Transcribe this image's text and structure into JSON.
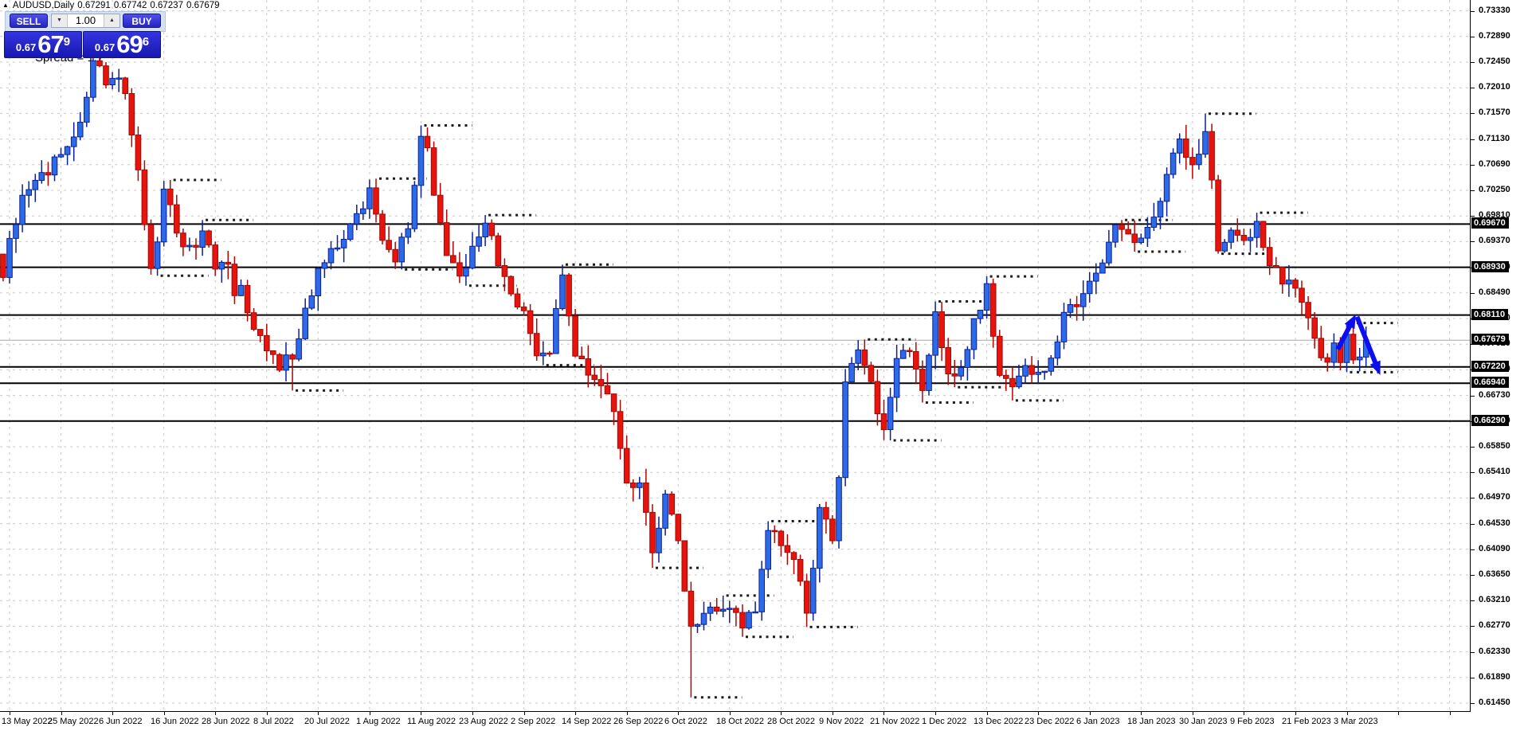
{
  "header": {
    "symbol": "AUDUSD,Daily",
    "open": "0.67291",
    "high": "0.67742",
    "low": "0.67237",
    "close": "0.67679"
  },
  "trade_panel": {
    "sell_label": "SELL",
    "buy_label": "BUY",
    "volume": "1.00",
    "spread_text": "Spread = 1.7",
    "sell_price": {
      "prefix": "0.67",
      "big": "67",
      "sup": "9"
    },
    "buy_price": {
      "prefix": "0.67",
      "big": "69",
      "sup": "6"
    }
  },
  "colors": {
    "bull_fill": "#2e6ae8",
    "bull_border": "#0a1f96",
    "bear_fill": "#e8130d",
    "bear_border": "#9e0a06",
    "level_line": "#000000",
    "grid": "#c9c9c9",
    "bid_line": "#a8a8a8",
    "arrow": "#0d0df2",
    "panel_bg": "#d4e2f2",
    "button_bg": "#3030d6",
    "tile_bg": "#2020c6"
  },
  "chart_data": {
    "type": "candlestick",
    "symbol": "AUDUSD",
    "timeframe": "Daily",
    "title": "AUDUSD,Daily  0.67291 0.67742 0.67237 0.67679",
    "grid": "dashed",
    "y_axis": {
      "min": 0.6145,
      "max": 0.7333,
      "tick_step": 0.0044,
      "tick_labels": [
        "0.73330",
        "0.72890",
        "0.72450",
        "0.72010",
        "0.71570",
        "0.71130",
        "0.70690",
        "0.70250",
        "0.69810",
        "0.69370",
        "0.68930",
        "0.68490",
        "0.68050",
        "0.67610",
        "0.67170",
        "0.66730",
        "0.66290",
        "0.65850",
        "0.65410",
        "0.64970",
        "0.64530",
        "0.64090",
        "0.63650",
        "0.63210",
        "0.62770",
        "0.62330",
        "0.61890",
        "0.61450"
      ]
    },
    "x_axis": {
      "bars_per_tick": 8,
      "tick_labels": [
        "13 May 2022",
        "25 May 2022",
        "6 Jun 2022",
        "16 Jun 2022",
        "28 Jun 2022",
        "8 Jul 2022",
        "20 Jul 2022",
        "1 Aug 2022",
        "11 Aug 2022",
        "23 Aug 2022",
        "2 Sep 2022",
        "14 Sep 2022",
        "26 Sep 2022",
        "6 Oct 2022",
        "18 Oct 2022",
        "28 Oct 2022",
        "9 Nov 2022",
        "21 Nov 2022",
        "1 Dec 2022",
        "13 Dec 2022",
        "23 Dec 2022",
        "6 Jan 2023",
        "18 Jan 2023",
        "30 Jan 2023",
        "9 Feb 2023",
        "21 Feb 2023",
        "3 Mar 2023"
      ]
    },
    "levels": [
      {
        "price": 0.6967,
        "label": "0.69670"
      },
      {
        "price": 0.6893,
        "label": "0.68930"
      },
      {
        "price": 0.6811,
        "label": "0.68110"
      },
      {
        "price": 0.6722,
        "label": "0.67220"
      },
      {
        "price": 0.6694,
        "label": "0.66940"
      },
      {
        "price": 0.6629,
        "label": "0.66290"
      }
    ],
    "bid": {
      "price": 0.67679,
      "label": "0.67679"
    },
    "close_path_anchors": [
      [
        0,
        0.688
      ],
      [
        1,
        0.6938
      ],
      [
        3,
        0.701
      ],
      [
        5,
        0.7035
      ],
      [
        7,
        0.706
      ],
      [
        9,
        0.7085
      ],
      [
        11,
        0.712
      ],
      [
        13,
        0.7185
      ],
      [
        14,
        0.7255
      ],
      [
        16,
        0.7205
      ],
      [
        18,
        0.722
      ],
      [
        19,
        0.7185
      ],
      [
        21,
        0.706
      ],
      [
        22,
        0.6975
      ],
      [
        23,
        0.688
      ],
      [
        24,
        0.6935
      ],
      [
        25,
        0.703
      ],
      [
        26,
        0.7
      ],
      [
        27,
        0.6945
      ],
      [
        29,
        0.6925
      ],
      [
        31,
        0.6945
      ],
      [
        33,
        0.69
      ],
      [
        35,
        0.6895
      ],
      [
        36,
        0.6855
      ],
      [
        37,
        0.6862
      ],
      [
        39,
        0.6783
      ],
      [
        41,
        0.6747
      ],
      [
        43,
        0.6722
      ],
      [
        45,
        0.6745
      ],
      [
        47,
        0.6815
      ],
      [
        49,
        0.689
      ],
      [
        51,
        0.6925
      ],
      [
        53,
        0.6945
      ],
      [
        55,
        0.6985
      ],
      [
        57,
        0.7022
      ],
      [
        59,
        0.6948
      ],
      [
        61,
        0.6912
      ],
      [
        63,
        0.6962
      ],
      [
        64,
        0.704
      ],
      [
        65,
        0.7108
      ],
      [
        66,
        0.71
      ],
      [
        67,
        0.7022
      ],
      [
        69,
        0.6918
      ],
      [
        71,
        0.6872
      ],
      [
        73,
        0.693
      ],
      [
        75,
        0.6975
      ],
      [
        77,
        0.6898
      ],
      [
        79,
        0.6843
      ],
      [
        81,
        0.6812
      ],
      [
        83,
        0.6738
      ],
      [
        85,
        0.6748
      ],
      [
        87,
        0.6882
      ],
      [
        88,
        0.682
      ],
      [
        89,
        0.6748
      ],
      [
        91,
        0.6718
      ],
      [
        93,
        0.6692
      ],
      [
        95,
        0.6648
      ],
      [
        97,
        0.6528
      ],
      [
        99,
        0.6522
      ],
      [
        101,
        0.6405
      ],
      [
        103,
        0.6502
      ],
      [
        105,
        0.6415
      ],
      [
        107,
        0.6272
      ],
      [
        109,
        0.6305
      ],
      [
        111,
        0.6302
      ],
      [
        113,
        0.6312
      ],
      [
        115,
        0.6282
      ],
      [
        117,
        0.6312
      ],
      [
        119,
        0.6452
      ],
      [
        121,
        0.6412
      ],
      [
        123,
        0.6402
      ],
      [
        125,
        0.6292
      ],
      [
        127,
        0.6472
      ],
      [
        129,
        0.6432
      ],
      [
        130,
        0.6532
      ],
      [
        131,
        0.6705
      ],
      [
        133,
        0.6758
      ],
      [
        135,
        0.6688
      ],
      [
        137,
        0.6608
      ],
      [
        139,
        0.6735
      ],
      [
        141,
        0.6755
      ],
      [
        143,
        0.6688
      ],
      [
        145,
        0.6812
      ],
      [
        147,
        0.6702
      ],
      [
        149,
        0.6722
      ],
      [
        151,
        0.6795
      ],
      [
        153,
        0.6855
      ],
      [
        155,
        0.6702
      ],
      [
        157,
        0.6692
      ],
      [
        159,
        0.6725
      ],
      [
        161,
        0.6712
      ],
      [
        163,
        0.6735
      ],
      [
        165,
        0.6815
      ],
      [
        167,
        0.6835
      ],
      [
        169,
        0.6875
      ],
      [
        171,
        0.6892
      ],
      [
        173,
        0.6972
      ],
      [
        175,
        0.6955
      ],
      [
        177,
        0.6935
      ],
      [
        179,
        0.6972
      ],
      [
        181,
        0.7045
      ],
      [
        183,
        0.7112
      ],
      [
        185,
        0.7058
      ],
      [
        187,
        0.7135
      ],
      [
        188,
        0.7042
      ],
      [
        189,
        0.6925
      ],
      [
        191,
        0.6962
      ],
      [
        193,
        0.6942
      ],
      [
        195,
        0.6965
      ],
      [
        197,
        0.6902
      ],
      [
        199,
        0.6875
      ],
      [
        201,
        0.6855
      ],
      [
        203,
        0.6805
      ],
      [
        205,
        0.6737
      ],
      [
        206,
        0.6725
      ],
      [
        207,
        0.6755
      ],
      [
        208,
        0.6732
      ],
      [
        209,
        0.6768
      ],
      [
        210,
        0.674
      ],
      [
        211,
        0.673
      ],
      [
        212,
        0.67679
      ]
    ],
    "wick_extremes": [
      {
        "bar": 14,
        "side": "high",
        "price": 0.72661
      },
      {
        "bar": 45,
        "side": "low",
        "price": 0.66815
      },
      {
        "bar": 65,
        "side": "high",
        "price": 0.71364
      },
      {
        "bar": 107,
        "side": "low",
        "price": 0.6155
      },
      {
        "bar": 187,
        "side": "high",
        "price": 0.71566
      }
    ],
    "annotation_arrows": [
      {
        "from_bar": 207.6,
        "from_price": 0.6752,
        "to_bar": 210.4,
        "to_price": 0.6812
      },
      {
        "from_bar": 210.6,
        "from_price": 0.6808,
        "to_bar": 214.2,
        "to_price": 0.6708
      }
    ]
  }
}
